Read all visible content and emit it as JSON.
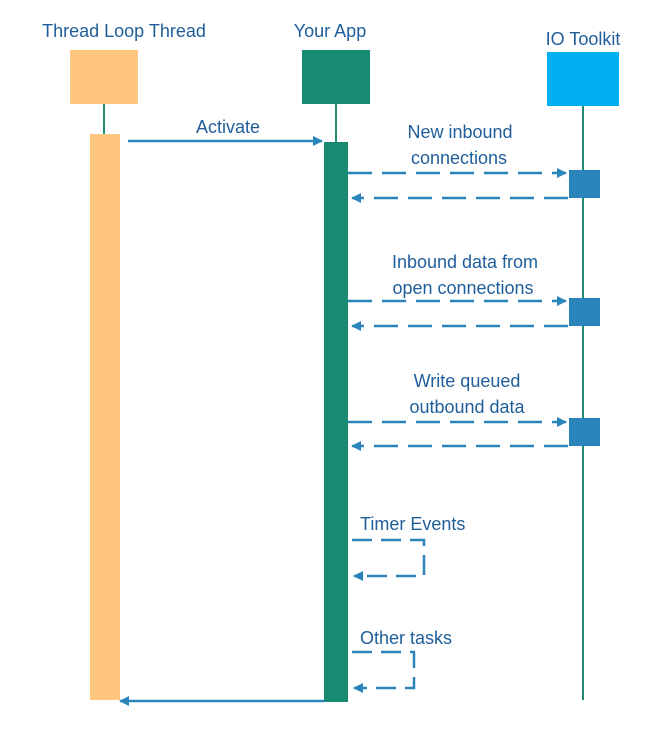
{
  "participants": {
    "thread_loop": {
      "label": "Thread Loop Thread",
      "color": "#ffc680"
    },
    "your_app": {
      "label": "Your App",
      "color": "#178a71"
    },
    "io_toolkit": {
      "label": "IO Toolkit",
      "color": "#00b0f0"
    }
  },
  "activation_colors": {
    "thread_loop": "#ffc680",
    "your_app": "#178a71",
    "io_toolkit": "#2a86ba"
  },
  "messages": {
    "activate": "Activate",
    "new_inbound_l1": "New inbound",
    "new_inbound_l2": "connections",
    "inbound_data_l1": "Inbound data from",
    "inbound_data_l2": "open connections",
    "write_queued_l1": "Write queued",
    "write_queued_l2": "outbound data",
    "timer_events": "Timer Events",
    "other_tasks": "Other tasks"
  },
  "colors": {
    "text": "#1f5e9a",
    "arrow": "#2a86ba"
  }
}
